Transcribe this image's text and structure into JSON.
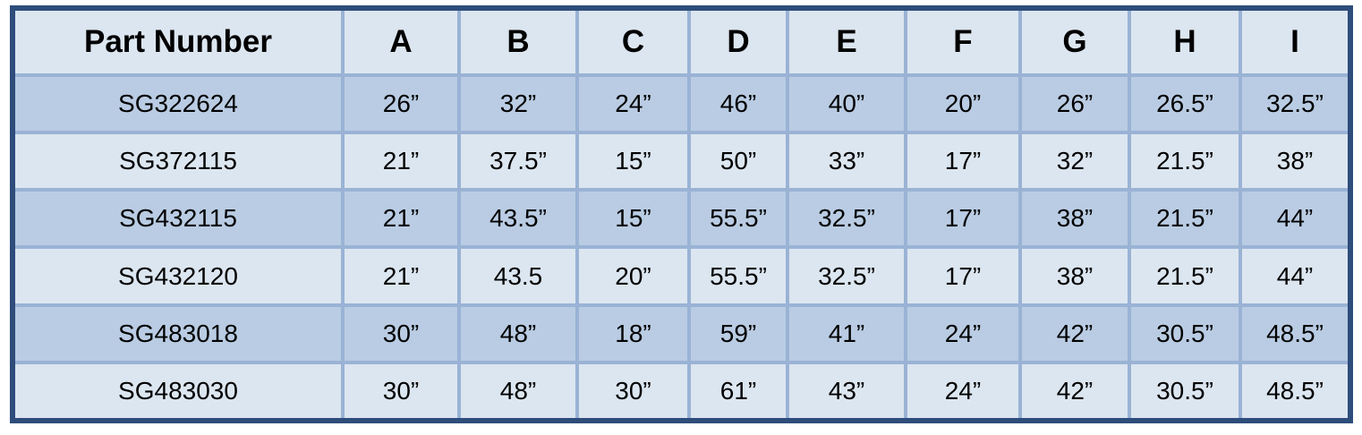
{
  "table": {
    "headers": [
      "Part Number",
      "A",
      "B",
      "C",
      "D",
      "E",
      "F",
      "G",
      "H",
      "I"
    ],
    "rows": [
      [
        "SG322624",
        "26”",
        "32”",
        "24”",
        "46”",
        "40”",
        "20”",
        "26”",
        "26.5”",
        "32.5”"
      ],
      [
        "SG372115",
        "21”",
        "37.5”",
        "15”",
        "50”",
        "33”",
        "17”",
        "32”",
        "21.5”",
        "38”"
      ],
      [
        "SG432115",
        "21”",
        "43.5”",
        "15”",
        "55.5”",
        "32.5”",
        "17”",
        "38”",
        "21.5”",
        "44”"
      ],
      [
        "SG432120",
        "21”",
        "43.5",
        "20”",
        "55.5”",
        "32.5”",
        "17”",
        "38”",
        "21.5”",
        "44”"
      ],
      [
        "SG483018",
        "30”",
        "48”",
        "18”",
        "59”",
        "41”",
        "24”",
        "42”",
        "30.5”",
        "48.5”"
      ],
      [
        "SG483030",
        "30”",
        "48”",
        "30”",
        "61”",
        "43”",
        "24”",
        "42”",
        "30.5”",
        "48.5”"
      ]
    ]
  },
  "colors": {
    "border": "#2e4d7b",
    "gridline": "#9ab3d5",
    "row_light": "#dce6f0",
    "row_dark": "#b9cce3"
  }
}
